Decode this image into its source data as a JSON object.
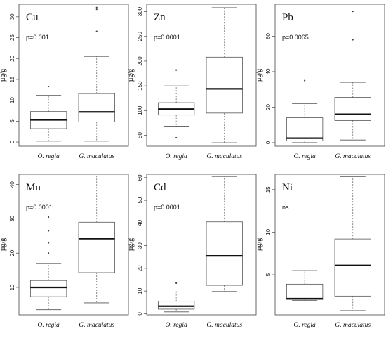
{
  "chart_data": [
    {
      "type": "box",
      "title": "Cu",
      "annotation": "p=0.001",
      "ylabel": "µg/g",
      "ylim": [
        -1,
        33
      ],
      "yticks": [
        0,
        5,
        10,
        15,
        20,
        25,
        30
      ],
      "categories": [
        "O. regia",
        "G. maculatus"
      ],
      "boxes": [
        {
          "whisker_low": 0.2,
          "q1": 3.2,
          "median": 5.3,
          "q3": 7.3,
          "whisker_high": 11.2,
          "outliers": [
            13.3
          ]
        },
        {
          "whisker_low": 0.2,
          "q1": 4.8,
          "median": 7.2,
          "q3": 11.6,
          "whisker_high": 20.5,
          "outliers": [
            26.5,
            31.8,
            32.2
          ]
        }
      ]
    },
    {
      "type": "box",
      "title": "Zn",
      "annotation": "p=0.0001",
      "ylabel": "µg/g",
      "ylim": [
        28,
        315
      ],
      "yticks": [
        50,
        100,
        150,
        200,
        250,
        300
      ],
      "categories": [
        "O. regia",
        "G. maculatus"
      ],
      "boxes": [
        {
          "whisker_low": 67,
          "q1": 91,
          "median": 103,
          "q3": 116,
          "whisker_high": 150,
          "outliers": [
            45,
            182
          ]
        },
        {
          "whisker_low": 35,
          "q1": 95,
          "median": 144,
          "q3": 208,
          "whisker_high": 308,
          "outliers": []
        }
      ]
    },
    {
      "type": "box",
      "title": "Pb",
      "annotation": "p=0.0065",
      "ylabel": "µg/g",
      "ylim": [
        -2,
        78
      ],
      "yticks": [
        0,
        20,
        40,
        60
      ],
      "categories": [
        "O. regia",
        "G. maculatus"
      ],
      "boxes": [
        {
          "whisker_low": 0,
          "q1": 1,
          "median": 2.5,
          "q3": 14,
          "whisker_high": 22,
          "outliers": [
            35
          ]
        },
        {
          "whisker_low": 1.5,
          "q1": 12.5,
          "median": 16,
          "q3": 25.5,
          "whisker_high": 34,
          "outliers": [
            58,
            74
          ]
        }
      ]
    },
    {
      "type": "box",
      "title": "Mn",
      "annotation": "p=0.0001",
      "ylabel": "µg/g",
      "ylim": [
        2,
        43
      ],
      "yticks": [
        10,
        20,
        30,
        40
      ],
      "categories": [
        "O. regia",
        "G. maculatus"
      ],
      "boxes": [
        {
          "whisker_low": 3.5,
          "q1": 7.3,
          "median": 10,
          "q3": 12,
          "whisker_high": 17,
          "outliers": [
            20,
            23,
            26.5,
            30.5
          ]
        },
        {
          "whisker_low": 5.5,
          "q1": 14.3,
          "median": 24.2,
          "q3": 29,
          "whisker_high": 42.5,
          "outliers": []
        }
      ]
    },
    {
      "type": "box",
      "title": "Cd",
      "annotation": "p=0.0001",
      "ylabel": "µg/g",
      "ylim": [
        -0.5,
        61.5
      ],
      "yticks": [
        0,
        10,
        20,
        30,
        40,
        50,
        60
      ],
      "categories": [
        "O. regia",
        "G. maculatus"
      ],
      "boxes": [
        {
          "whisker_low": 0.8,
          "q1": 2,
          "median": 3.3,
          "q3": 5.5,
          "whisker_high": 10.5,
          "outliers": [
            13.5
          ]
        },
        {
          "whisker_low": 9.8,
          "q1": 12.5,
          "median": 25.5,
          "q3": 40.5,
          "whisker_high": 60.5,
          "outliers": []
        }
      ]
    },
    {
      "type": "box",
      "title": "Ni",
      "annotation": "ns",
      "ylabel": "µg/g",
      "ylim": [
        0.3,
        16.8
      ],
      "yticks": [
        5,
        10,
        15
      ],
      "categories": [
        "O. regia",
        "G. maculatus"
      ],
      "boxes": [
        {
          "whisker_low": 2,
          "q1": 2.1,
          "median": 2.2,
          "q3": 3.9,
          "whisker_high": 5.5,
          "outliers": []
        },
        {
          "whisker_low": 0.8,
          "q1": 2.5,
          "median": 6.1,
          "q3": 9.2,
          "whisker_high": 16.5,
          "outliers": []
        }
      ]
    }
  ]
}
